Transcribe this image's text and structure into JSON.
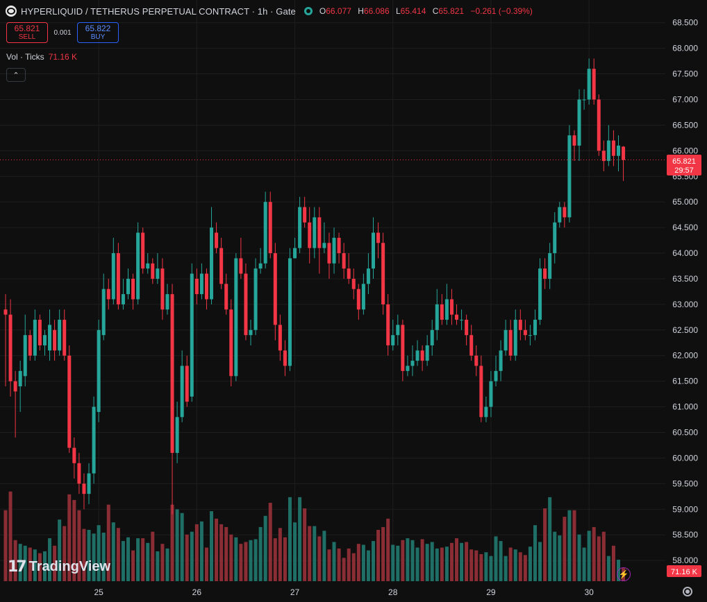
{
  "header": {
    "title": "HYPERLIQUID / TETHERUS PERPETUAL CONTRACT · 1h · Gate",
    "o_label": "O",
    "o": "66.077",
    "h_label": "H",
    "h": "66.086",
    "l_label": "L",
    "l": "65.414",
    "c_label": "C",
    "c": "65.821",
    "change": "−0.261 (−0.39%)"
  },
  "trade": {
    "sell_price": "65.821",
    "sell_label": "SELL",
    "spread": "0.001",
    "buy_price": "65.822",
    "buy_label": "BUY"
  },
  "volume_legend": {
    "label": "Vol · Ticks",
    "value": "71.16 K"
  },
  "branding": {
    "name": "TradingView"
  },
  "price_badge": {
    "price": "65.821",
    "countdown": "29:57"
  },
  "volume_badge": "71.16 K",
  "colors": {
    "up": "#26a69a",
    "down": "#f23645",
    "background": "#0f0f0f",
    "grid": "#1e1e1e"
  },
  "icons": [
    "collapse-chevron-icon",
    "tradingview-logo-icon",
    "lightning-icon",
    "settings-icon"
  ],
  "chart_data": {
    "type": "candlestick",
    "price_axis": {
      "min": 57.75,
      "max": 68.75,
      "ticks": [
        68.5,
        68.0,
        67.5,
        67.0,
        66.5,
        66.0,
        65.5,
        65.0,
        64.5,
        64.0,
        63.5,
        63.0,
        62.5,
        62.0,
        61.5,
        61.0,
        60.5,
        60.0,
        59.5,
        59.0,
        58.5,
        58.0
      ],
      "scale": "linear"
    },
    "time_axis": {
      "labels": [
        "25",
        "26",
        "27",
        "28",
        "29",
        "30"
      ],
      "label_candle_index": [
        19,
        39,
        59,
        79,
        99,
        119
      ]
    },
    "current_price": 65.821,
    "grid": true,
    "candles": [
      [
        62.9,
        62.8,
        63.2,
        61.4
      ],
      [
        62.8,
        61.5,
        63.1,
        61.2
      ],
      [
        61.5,
        61.3,
        61.7,
        60.4
      ],
      [
        61.4,
        61.7,
        61.9,
        60.9
      ],
      [
        61.6,
        62.4,
        62.8,
        61.4
      ],
      [
        62.4,
        62.0,
        62.5,
        61.9
      ],
      [
        62.0,
        62.7,
        62.9,
        61.9
      ],
      [
        62.7,
        62.2,
        62.8,
        62.1
      ],
      [
        62.2,
        62.4,
        62.5,
        62.0
      ],
      [
        62.1,
        62.6,
        62.9,
        61.9
      ],
      [
        62.5,
        62.1,
        62.7,
        61.9
      ],
      [
        62.1,
        62.7,
        62.9,
        62.0
      ],
      [
        62.7,
        62.0,
        62.9,
        61.9
      ],
      [
        62.0,
        60.2,
        62.2,
        60.1
      ],
      [
        60.2,
        59.9,
        60.4,
        59.6
      ],
      [
        59.9,
        59.5,
        60.1,
        59.3
      ],
      [
        59.5,
        59.3,
        59.7,
        59.0
      ],
      [
        59.3,
        59.7,
        59.9,
        59.1
      ],
      [
        59.7,
        61.0,
        61.2,
        59.5
      ],
      [
        60.9,
        62.5,
        62.7,
        60.7
      ],
      [
        62.4,
        63.3,
        63.6,
        62.3
      ],
      [
        63.3,
        63.1,
        63.5,
        62.9
      ],
      [
        63.1,
        64.0,
        64.3,
        63.0
      ],
      [
        64.0,
        63.0,
        64.2,
        62.9
      ],
      [
        63.0,
        63.2,
        63.5,
        62.9
      ],
      [
        63.2,
        63.5,
        63.7,
        63.1
      ],
      [
        63.5,
        63.1,
        63.6,
        62.9
      ],
      [
        63.1,
        64.4,
        64.6,
        63.0
      ],
      [
        64.4,
        63.7,
        64.5,
        63.6
      ],
      [
        63.7,
        63.8,
        64.0,
        63.6
      ],
      [
        63.8,
        63.5,
        63.9,
        63.4
      ],
      [
        63.5,
        63.7,
        64.0,
        63.4
      ],
      [
        63.7,
        62.9,
        63.9,
        62.7
      ],
      [
        62.9,
        63.2,
        63.4,
        62.8
      ],
      [
        63.2,
        60.1,
        63.4,
        58.9
      ],
      [
        60.1,
        60.8,
        61.1,
        59.9
      ],
      [
        60.8,
        61.8,
        62.1,
        60.7
      ],
      [
        61.8,
        61.1,
        62.0,
        61.0
      ],
      [
        61.2,
        63.6,
        63.8,
        61.1
      ],
      [
        63.5,
        63.2,
        63.7,
        63.0
      ],
      [
        63.2,
        63.6,
        63.8,
        63.1
      ],
      [
        63.6,
        63.1,
        63.7,
        62.9
      ],
      [
        63.1,
        64.5,
        64.9,
        63.0
      ],
      [
        64.4,
        64.1,
        64.6,
        64.0
      ],
      [
        64.1,
        63.4,
        64.3,
        63.3
      ],
      [
        63.4,
        62.9,
        63.6,
        62.8
      ],
      [
        62.9,
        61.6,
        63.1,
        61.4
      ],
      [
        61.6,
        63.9,
        64.0,
        61.5
      ],
      [
        63.9,
        63.6,
        64.3,
        63.5
      ],
      [
        63.6,
        62.4,
        63.8,
        62.3
      ],
      [
        62.4,
        62.5,
        62.7,
        62.2
      ],
      [
        62.5,
        63.7,
        63.9,
        62.4
      ],
      [
        63.7,
        63.8,
        64.1,
        63.6
      ],
      [
        63.8,
        65.0,
        65.2,
        63.7
      ],
      [
        65.0,
        64.0,
        65.2,
        63.9
      ],
      [
        64.0,
        62.6,
        64.2,
        62.3
      ],
      [
        62.6,
        62.1,
        62.8,
        61.9
      ],
      [
        62.1,
        61.8,
        62.3,
        61.6
      ],
      [
        61.8,
        63.9,
        64.1,
        61.7
      ],
      [
        63.9,
        64.1,
        64.3,
        63.9
      ],
      [
        64.1,
        64.9,
        65.1,
        64.0
      ],
      [
        64.9,
        64.6,
        65.1,
        64.5
      ],
      [
        64.6,
        64.1,
        64.9,
        63.8
      ],
      [
        64.1,
        64.7,
        64.9,
        63.9
      ],
      [
        64.7,
        64.1,
        64.9,
        63.6
      ],
      [
        64.1,
        64.2,
        64.6,
        64.0
      ],
      [
        64.2,
        63.8,
        64.4,
        63.5
      ],
      [
        63.8,
        64.3,
        64.5,
        63.6
      ],
      [
        64.3,
        64.0,
        64.4,
        63.8
      ],
      [
        64.0,
        63.7,
        64.2,
        63.5
      ],
      [
        63.7,
        63.5,
        64.0,
        63.4
      ],
      [
        63.5,
        63.3,
        63.7,
        63.1
      ],
      [
        63.3,
        62.9,
        63.4,
        62.7
      ],
      [
        62.9,
        63.4,
        63.6,
        62.8
      ],
      [
        63.4,
        63.7,
        64.0,
        63.2
      ],
      [
        63.7,
        64.4,
        64.7,
        63.5
      ],
      [
        64.4,
        64.2,
        64.6,
        63.9
      ],
      [
        64.2,
        63.0,
        64.4,
        62.8
      ],
      [
        63.0,
        62.2,
        63.2,
        62.0
      ],
      [
        62.2,
        62.4,
        62.7,
        62.1
      ],
      [
        62.4,
        62.6,
        62.8,
        62.2
      ],
      [
        62.6,
        61.7,
        62.7,
        61.5
      ],
      [
        61.7,
        61.8,
        62.0,
        61.6
      ],
      [
        61.8,
        61.9,
        62.2,
        61.6
      ],
      [
        61.9,
        62.1,
        62.3,
        61.8
      ],
      [
        62.1,
        61.9,
        62.2,
        61.7
      ],
      [
        61.9,
        62.2,
        62.4,
        61.8
      ],
      [
        62.2,
        62.5,
        62.7,
        62.0
      ],
      [
        62.5,
        63.0,
        63.3,
        62.3
      ],
      [
        63.0,
        62.7,
        63.2,
        62.6
      ],
      [
        62.7,
        63.1,
        63.4,
        62.6
      ],
      [
        63.1,
        62.8,
        63.3,
        62.6
      ],
      [
        62.8,
        62.7,
        63.0,
        62.6
      ],
      [
        62.7,
        62.7,
        62.9,
        62.5
      ],
      [
        62.7,
        62.4,
        62.8,
        62.2
      ],
      [
        62.4,
        62.0,
        62.6,
        61.9
      ],
      [
        62.0,
        61.8,
        62.2,
        61.6
      ],
      [
        61.8,
        60.8,
        62.0,
        60.7
      ],
      [
        60.8,
        61.0,
        61.2,
        60.7
      ],
      [
        61.0,
        61.5,
        61.7,
        60.8
      ],
      [
        61.5,
        61.7,
        62.0,
        61.4
      ],
      [
        61.7,
        62.1,
        62.3,
        61.5
      ],
      [
        62.1,
        62.5,
        62.7,
        62.0
      ],
      [
        62.5,
        62.0,
        62.7,
        61.9
      ],
      [
        62.0,
        62.7,
        62.9,
        61.9
      ],
      [
        62.7,
        62.5,
        62.9,
        62.3
      ],
      [
        62.5,
        62.4,
        62.7,
        62.3
      ],
      [
        62.4,
        62.4,
        62.6,
        62.2
      ],
      [
        62.4,
        62.7,
        62.9,
        62.3
      ],
      [
        62.7,
        63.7,
        63.9,
        62.6
      ],
      [
        63.7,
        63.5,
        63.9,
        63.3
      ],
      [
        63.5,
        64.0,
        64.2,
        63.3
      ],
      [
        64.0,
        64.6,
        64.8,
        63.8
      ],
      [
        64.6,
        64.9,
        65.0,
        64.5
      ],
      [
        64.9,
        64.7,
        65.0,
        64.5
      ],
      [
        64.7,
        66.3,
        66.5,
        64.6
      ],
      [
        66.3,
        66.1,
        66.4,
        65.8
      ],
      [
        66.1,
        67.0,
        67.2,
        65.8
      ],
      [
        67.0,
        67.0,
        67.2,
        66.8
      ],
      [
        67.0,
        67.6,
        67.8,
        66.9
      ],
      [
        67.6,
        67.0,
        67.8,
        66.9
      ],
      [
        67.0,
        66.0,
        67.1,
        65.9
      ],
      [
        66.0,
        65.8,
        66.2,
        65.6
      ],
      [
        65.8,
        66.2,
        66.5,
        65.7
      ],
      [
        66.2,
        65.9,
        66.4,
        65.7
      ],
      [
        65.9,
        66.1,
        66.3,
        65.6
      ],
      [
        66.08,
        65.82,
        66.09,
        65.41
      ]
    ],
    "volume_max": 104,
    "volumes": [
      76,
      96,
      44,
      40,
      38,
      36,
      34,
      30,
      32,
      46,
      38,
      66,
      59,
      93,
      87,
      76,
      56,
      55,
      51,
      60,
      52,
      82,
      63,
      57,
      43,
      47,
      33,
      46,
      46,
      41,
      53,
      32,
      40,
      35,
      82,
      77,
      73,
      50,
      53,
      61,
      64,
      36,
      75,
      67,
      61,
      58,
      50,
      47,
      40,
      42,
      44,
      45,
      58,
      70,
      84,
      46,
      57,
      47,
      90,
      63,
      90,
      78,
      59,
      59,
      48,
      54,
      34,
      42,
      35,
      25,
      35,
      30,
      40,
      39,
      33,
      43,
      55,
      58,
      67,
      39,
      38,
      44,
      46,
      44,
      36,
      45,
      40,
      42,
      35,
      36,
      37,
      41,
      46,
      41,
      42,
      34,
      33,
      29,
      31,
      27,
      48,
      43,
      27,
      36,
      34,
      31,
      28,
      37,
      60,
      42,
      78,
      90,
      53,
      49,
      69,
      76,
      76,
      50,
      36,
      54,
      58,
      48,
      53,
      27,
      38,
      23,
      14
    ]
  }
}
